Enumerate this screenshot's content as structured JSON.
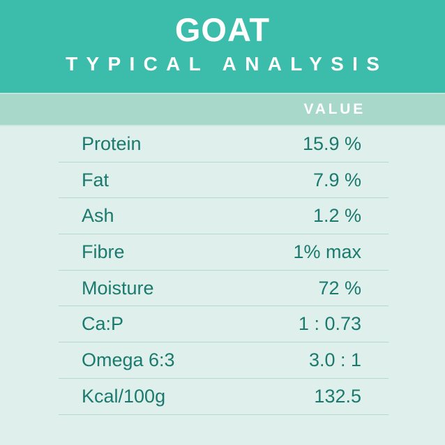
{
  "chart_data": {
    "type": "table",
    "title": "GOAT",
    "subtitle": "TYPICAL ANALYSIS",
    "value_column_header": "VALUE",
    "rows": [
      {
        "label": "Protein",
        "value": "15.9 %"
      },
      {
        "label": "Fat",
        "value": "7.9 %"
      },
      {
        "label": "Ash",
        "value": "1.2 %"
      },
      {
        "label": "Fibre",
        "value": "1% max"
      },
      {
        "label": "Moisture",
        "value": "72 %"
      },
      {
        "label": "Ca:P",
        "value": "1 : 0.73"
      },
      {
        "label": "Omega 6:3",
        "value": "3.0 : 1"
      },
      {
        "label": "Kcal/100g",
        "value": "132.5"
      }
    ],
    "layout": {
      "legend": "none",
      "grid": "horizontal-dividers"
    }
  },
  "colors": {
    "header_background": "#3cbcaa",
    "value_band_background": "#a8d8c9",
    "table_background": "#dfefeb",
    "text_teal": "#1b7a6e",
    "divider": "#b4d7d0",
    "header_text": "#ffffff"
  }
}
